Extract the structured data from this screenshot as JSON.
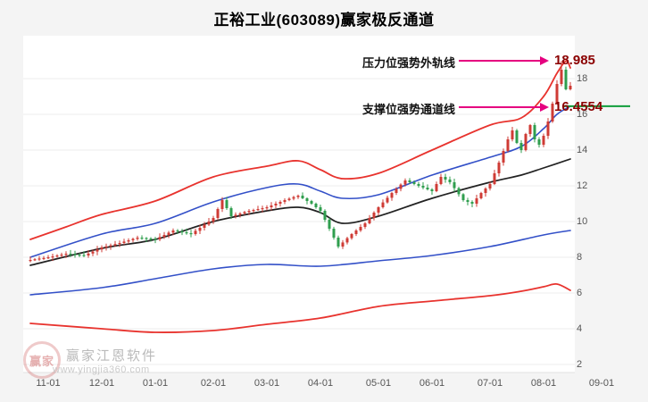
{
  "title": "正裕工业(603089)赢家极反通道",
  "annotations": {
    "pressure": {
      "label": "压力位强势外轨线",
      "value": "18.985"
    },
    "support": {
      "label": "支撑位强势通道线",
      "value": "16.4554"
    }
  },
  "watermark": {
    "logo_text": "赢家",
    "brand": "赢家江恩软件",
    "url": "www.yingjia360.com"
  },
  "colors": {
    "up": "#cf3b35",
    "down": "#2f9e4e",
    "outer_rail": "#e8332e",
    "channel": "#3350c8",
    "midline": "#222222",
    "arrow": "#e5007f",
    "value_text": "#8b0000",
    "support_line": "#0f9d3a"
  },
  "chart_data": {
    "type": "candlestick",
    "title": "正裕工业(603089)赢家极反通道",
    "ylim": [
      1.6,
      19.8
    ],
    "grid": true,
    "pressure_level": 18.985,
    "support_level": 16.4554,
    "y_ticks": [
      2,
      4,
      6,
      8,
      10,
      12,
      14,
      16,
      18
    ],
    "x_ticks": [
      {
        "label": "11-01",
        "pos": 4
      },
      {
        "label": "12-01",
        "pos": 16
      },
      {
        "label": "01-01",
        "pos": 28
      },
      {
        "label": "02-01",
        "pos": 41
      },
      {
        "label": "03-01",
        "pos": 53
      },
      {
        "label": "04-01",
        "pos": 65
      },
      {
        "label": "05-01",
        "pos": 78
      },
      {
        "label": "06-01",
        "pos": 90
      },
      {
        "label": "07-01",
        "pos": 103
      },
      {
        "label": "08-01",
        "pos": 115
      },
      {
        "label": "09-01",
        "pos": 128
      }
    ],
    "closes": [
      7.85,
      7.89,
      7.93,
      7.96,
      8.0,
      8.05,
      8.1,
      8.15,
      8.2,
      8.18,
      8.15,
      8.13,
      8.1,
      8.21,
      8.32,
      8.44,
      8.55,
      8.61,
      8.67,
      8.74,
      8.8,
      8.88,
      8.95,
      9.03,
      9.1,
      9.08,
      9.05,
      9.03,
      9.0,
      9.13,
      9.25,
      9.38,
      9.5,
      9.45,
      9.4,
      9.35,
      9.3,
      9.48,
      9.65,
      9.83,
      10.0,
      10.2,
      10.7,
      11.2,
      10.75,
      10.3,
      10.38,
      10.45,
      10.53,
      10.6,
      10.65,
      10.7,
      10.75,
      10.8,
      10.9,
      11.0,
      11.1,
      11.2,
      11.28,
      11.37,
      11.45,
      11.3,
      11.15,
      11.0,
      10.8,
      10.6,
      10.1,
      9.6,
      9.1,
      8.6,
      8.83,
      9.07,
      9.3,
      9.5,
      9.7,
      9.9,
      10.2,
      10.5,
      10.8,
      11.07,
      11.33,
      11.6,
      11.83,
      12.07,
      12.3,
      12.2,
      12.1,
      12.0,
      11.9,
      11.8,
      11.7,
      12.1,
      12.5,
      12.35,
      12.2,
      11.87,
      11.53,
      11.2,
      11.1,
      11.0,
      11.3,
      11.6,
      11.85,
      12.1,
      12.7,
      13.3,
      13.95,
      14.6,
      15.1,
      14.4,
      14.0,
      14.9,
      15.4,
      14.6,
      14.3,
      14.8,
      15.6,
      16.6,
      17.7,
      18.5,
      17.4,
      17.6
    ],
    "lines": [
      {
        "name": "outer-rail-upper",
        "color": "#e8332e",
        "width": 1.8,
        "i": [
          0,
          8,
          16,
          28,
          41,
          53,
          60,
          65,
          70,
          78,
          90,
          103,
          110,
          115,
          118,
          120,
          121
        ],
        "v": [
          9.0,
          9.7,
          10.4,
          11.15,
          12.5,
          13.1,
          13.4,
          12.9,
          12.4,
          12.7,
          14.0,
          15.4,
          15.8,
          17.0,
          18.3,
          18.985,
          18.6
        ]
      },
      {
        "name": "channel-upper",
        "color": "#3350c8",
        "width": 1.6,
        "i": [
          0,
          16,
          28,
          41,
          53,
          60,
          65,
          70,
          78,
          90,
          103,
          110,
          115,
          118,
          121
        ],
        "v": [
          8.0,
          9.3,
          9.9,
          11.1,
          11.9,
          12.1,
          11.7,
          11.3,
          11.5,
          12.6,
          13.6,
          14.2,
          15.2,
          16.0,
          16.4554
        ]
      },
      {
        "name": "midline",
        "color": "#222222",
        "width": 1.7,
        "i": [
          0,
          16,
          28,
          41,
          53,
          60,
          65,
          70,
          78,
          90,
          103,
          110,
          115,
          121
        ],
        "v": [
          7.55,
          8.5,
          9.0,
          10.0,
          10.6,
          10.8,
          10.5,
          9.9,
          10.3,
          11.3,
          12.2,
          12.6,
          13.0,
          13.5
        ]
      },
      {
        "name": "channel-lower",
        "color": "#3350c8",
        "width": 1.6,
        "i": [
          0,
          16,
          28,
          41,
          53,
          65,
          78,
          90,
          103,
          115,
          121
        ],
        "v": [
          5.9,
          6.3,
          6.8,
          7.35,
          7.6,
          7.5,
          7.8,
          8.1,
          8.6,
          9.25,
          9.5
        ]
      },
      {
        "name": "outer-rail-lower",
        "color": "#e8332e",
        "width": 1.8,
        "i": [
          0,
          16,
          28,
          41,
          53,
          65,
          78,
          90,
          103,
          110,
          115,
          118,
          121
        ],
        "v": [
          4.3,
          4.0,
          3.8,
          3.9,
          4.25,
          4.6,
          5.25,
          5.55,
          5.85,
          6.1,
          6.35,
          6.5,
          6.15
        ]
      }
    ]
  }
}
